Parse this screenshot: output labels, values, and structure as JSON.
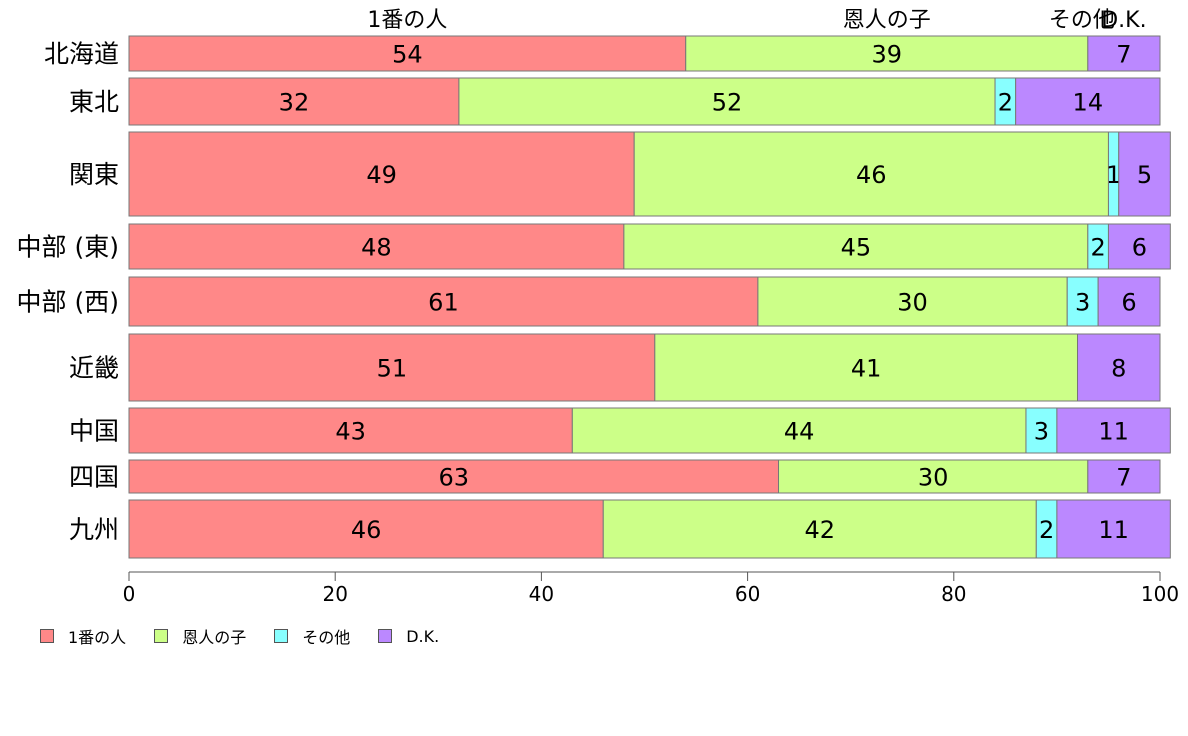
{
  "chart_data": {
    "type": "bar",
    "orientation": "horizontal-stacked",
    "categories": [
      "北海道",
      "東北",
      "関東",
      "中部 (東)",
      "中部 (西)",
      "近畿",
      "中国",
      "四国",
      "九州"
    ],
    "series": [
      {
        "name": "1番の人",
        "color": "#ff8888",
        "values": [
          54,
          32,
          49,
          48,
          61,
          51,
          43,
          63,
          46
        ]
      },
      {
        "name": "恩人の子",
        "color": "#ccff88",
        "values": [
          39,
          52,
          46,
          45,
          30,
          41,
          44,
          30,
          42
        ]
      },
      {
        "name": "その他",
        "color": "#88ffff",
        "values": [
          0,
          2,
          1,
          2,
          3,
          0,
          3,
          0,
          2
        ]
      },
      {
        "name": "D.K.",
        "color": "#bb88ff",
        "values": [
          7,
          14,
          5,
          6,
          6,
          8,
          11,
          7,
          11
        ]
      }
    ],
    "xlim": [
      0,
      100
    ],
    "xticks": [
      0,
      20,
      40,
      60,
      80,
      100
    ],
    "top_labels": [
      "1番の人",
      "恩人の子",
      "その他",
      "D.K."
    ],
    "legend_position": "bottom-left",
    "grid": false
  }
}
